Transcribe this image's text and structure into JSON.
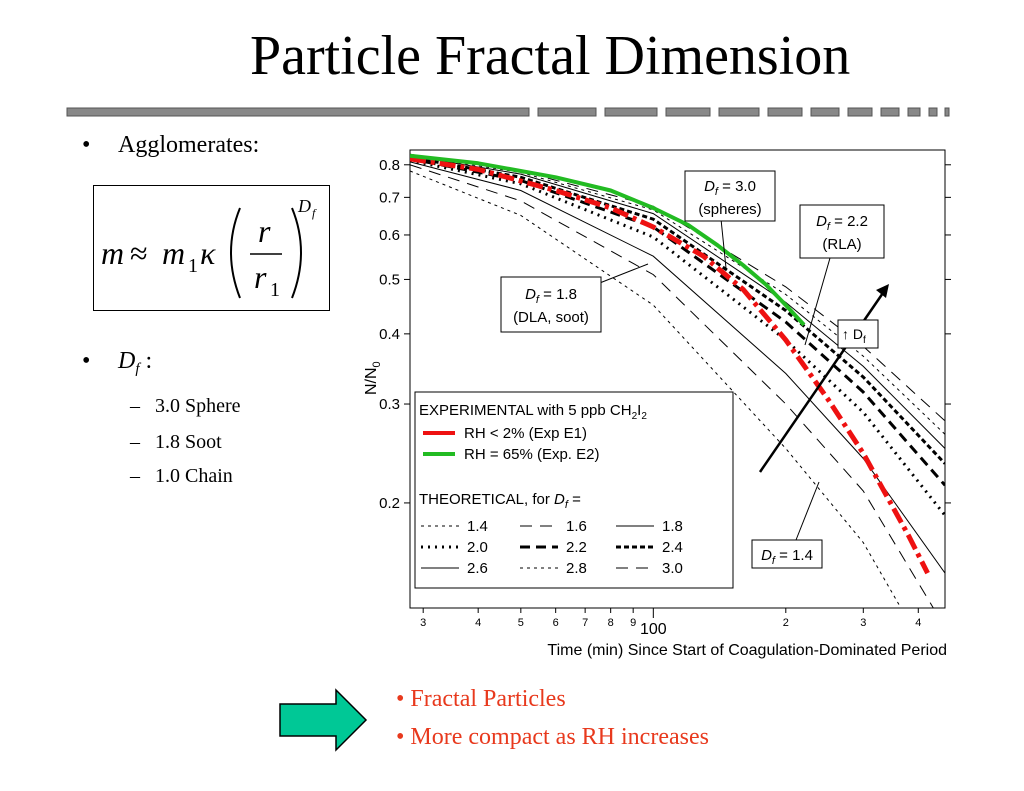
{
  "slide": {
    "title": "Particle Fractal Dimension",
    "bullets": [
      {
        "label": "Agglomerates:"
      },
      {
        "symbol": "D",
        "subscript": "f",
        "suffix": " :"
      }
    ],
    "subitems": [
      "3.0 Sphere",
      "1.8 Soot",
      "1.0 Chain"
    ],
    "formula": {
      "lhs": "m",
      "approx": "≈",
      "m": "m",
      "one": "1",
      "kappa": "κ",
      "numerator": "r",
      "denominator": "r",
      "denominator_sub": "1",
      "exponent": "D",
      "exponent_sub": "f"
    },
    "conclusions": [
      "• Fractal Particles",
      "• More compact as RH increases"
    ],
    "arrow_color": "#00c896"
  },
  "chart_data": {
    "type": "line",
    "xlabel": "Time (min) Since Start of Coagulation-Dominated Period",
    "ylabel_main": "N/N",
    "ylabel_sub": "0",
    "x_scale": "log",
    "y_scale": "log",
    "xlim": [
      28,
      460
    ],
    "ylim": [
      0.13,
      0.85
    ],
    "x_ticks": [
      {
        "v": 30,
        "label": "3"
      },
      {
        "v": 40,
        "label": "4"
      },
      {
        "v": 50,
        "label": "5"
      },
      {
        "v": 60,
        "label": "6"
      },
      {
        "v": 70,
        "label": "7"
      },
      {
        "v": 80,
        "label": "8"
      },
      {
        "v": 90,
        "label": "9"
      },
      {
        "v": 200,
        "label": "2"
      },
      {
        "v": 300,
        "label": "3"
      },
      {
        "v": 400,
        "label": "4"
      }
    ],
    "x_major_label": {
      "v": 100,
      "label": "100"
    },
    "y_ticks": [
      {
        "v": 0.8,
        "label": "0.8"
      },
      {
        "v": 0.7,
        "label": "0.7"
      },
      {
        "v": 0.6,
        "label": "0.6"
      },
      {
        "v": 0.5,
        "label": "0.5"
      },
      {
        "v": 0.4,
        "label": "0.4"
      },
      {
        "v": 0.3,
        "label": "0.3"
      },
      {
        "v": 0.2,
        "label": "0.2"
      }
    ],
    "series": [
      {
        "df": "1.4",
        "style": "fine-dash",
        "width": 1,
        "x": [
          28,
          50,
          100,
          200,
          300,
          460
        ],
        "y": [
          0.78,
          0.65,
          0.45,
          0.25,
          0.17,
          0.095
        ]
      },
      {
        "df": "1.6",
        "style": "long-dash",
        "width": 1,
        "x": [
          28,
          50,
          100,
          200,
          300,
          460
        ],
        "y": [
          0.8,
          0.69,
          0.51,
          0.3,
          0.21,
          0.12
        ]
      },
      {
        "df": "1.8",
        "style": "solid",
        "width": 1,
        "x": [
          28,
          50,
          100,
          200,
          300,
          460
        ],
        "y": [
          0.81,
          0.72,
          0.55,
          0.34,
          0.24,
          0.15
        ]
      },
      {
        "df": "2.0",
        "style": "dot",
        "width": 3,
        "x": [
          28,
          50,
          100,
          200,
          300,
          460
        ],
        "y": [
          0.815,
          0.74,
          0.595,
          0.39,
          0.29,
          0.19
        ]
      },
      {
        "df": "2.2",
        "style": "heavy-dash",
        "width": 3,
        "x": [
          28,
          50,
          100,
          200,
          300,
          460
        ],
        "y": [
          0.82,
          0.75,
          0.62,
          0.42,
          0.315,
          0.215
        ]
      },
      {
        "df": "2.4",
        "style": "dense-dash",
        "width": 3,
        "x": [
          28,
          50,
          100,
          200,
          300,
          460
        ],
        "y": [
          0.825,
          0.76,
          0.64,
          0.44,
          0.335,
          0.235
        ]
      },
      {
        "df": "2.6",
        "style": "solid",
        "width": 1,
        "x": [
          28,
          50,
          100,
          200,
          300,
          460
        ],
        "y": [
          0.83,
          0.77,
          0.655,
          0.455,
          0.35,
          0.25
        ]
      },
      {
        "df": "2.8",
        "style": "fine-dash",
        "width": 1,
        "x": [
          28,
          50,
          100,
          200,
          300,
          460
        ],
        "y": [
          0.832,
          0.775,
          0.665,
          0.47,
          0.365,
          0.265
        ]
      },
      {
        "df": "3.0",
        "style": "long-dash",
        "width": 1,
        "x": [
          28,
          50,
          100,
          200,
          300,
          460
        ],
        "y": [
          0.835,
          0.78,
          0.675,
          0.485,
          0.38,
          0.28
        ]
      }
    ],
    "experimental": [
      {
        "name": "RH  < 2%  (Exp E1)",
        "color": "#ee1111",
        "width": 5,
        "dash": "16 5 4 5",
        "x": [
          28,
          40,
          60,
          80,
          100,
          130,
          160,
          200,
          250,
          300,
          340,
          380,
          420
        ],
        "y": [
          0.82,
          0.785,
          0.72,
          0.67,
          0.62,
          0.55,
          0.48,
          0.39,
          0.305,
          0.245,
          0.205,
          0.175,
          0.15
        ]
      },
      {
        "name": "RH = 65% (Exp. E2)",
        "color": "#22bb22",
        "width": 4,
        "dash": "",
        "x": [
          28,
          40,
          60,
          80,
          100,
          120,
          140,
          160,
          180,
          200,
          220
        ],
        "y": [
          0.83,
          0.805,
          0.76,
          0.72,
          0.67,
          0.625,
          0.575,
          0.53,
          0.49,
          0.45,
          0.415
        ]
      }
    ],
    "legend": {
      "experimental_title": "EXPERIMENTAL with 5 ppb CH",
      "experimental_sub1": "2",
      "experimental_mid": "I",
      "experimental_sub2": "2",
      "theoretical_title": "THEORETICAL, for ",
      "theoretical_symbol": "D",
      "theoretical_sub": "f",
      "theoretical_eq": " ="
    },
    "annotations": [
      {
        "italic": "D",
        "sub": "f",
        "rest": " = 3.0",
        "line2": "(spheres)"
      },
      {
        "italic": "D",
        "sub": "f",
        "rest": " = 2.2",
        "line2": "(RLA)"
      },
      {
        "italic": "D",
        "sub": "f",
        "rest": " = 1.8",
        "line2": "(DLA, soot)"
      },
      {
        "italic": "D",
        "sub": "f",
        "rest": " = 1.4",
        "line2": ""
      }
    ],
    "trend_label": {
      "arrow": "↑",
      "text": " D",
      "sub": "f"
    }
  }
}
